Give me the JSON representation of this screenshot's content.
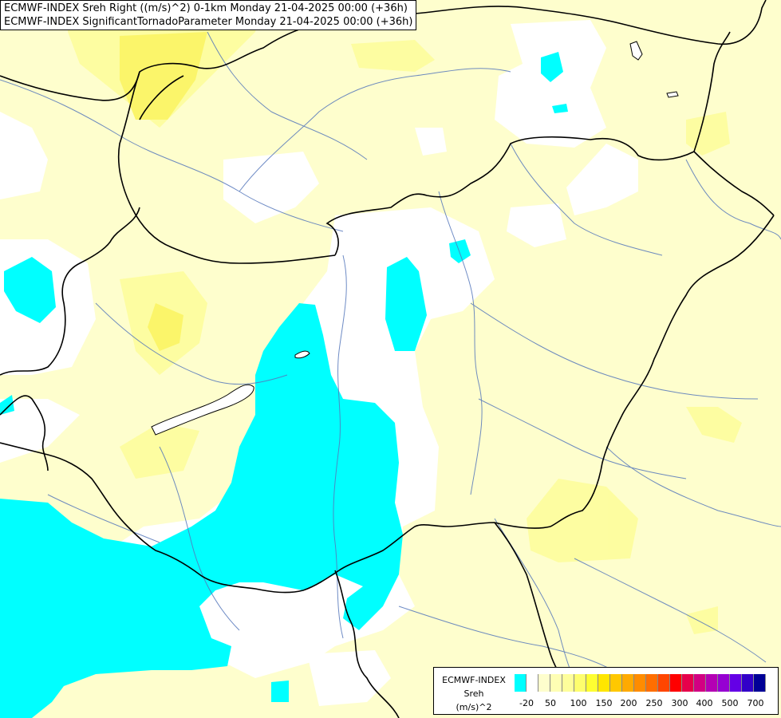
{
  "titles": {
    "line1": "ECMWF-INDEX Sreh Right ((m/s)^2) 0-1km Monday 21-04-2025 00:00 (+36h)",
    "line2": "ECMWF-INDEX SignificantTornadoParameter Monday 21-04-2025 00:00 (+36h)"
  },
  "legend": {
    "source": "ECMWF-INDEX",
    "variable": "Sreh",
    "unit": "(m/s)^2",
    "colors": [
      "#00ffff",
      "#ffffff",
      "#fefecd",
      "#fefeb4",
      "#fefe9b",
      "#fefe6e",
      "#fefe32",
      "#ffe600",
      "#ffc800",
      "#ffaa00",
      "#ff8c00",
      "#ff6e00",
      "#ff4600",
      "#ff0000",
      "#e6004b",
      "#d20082",
      "#b400b4",
      "#9600d2",
      "#6400e6",
      "#3200c8",
      "#000096"
    ],
    "tick_labels": [
      "-20",
      "50",
      "100",
      "150",
      "200",
      "250",
      "300",
      "400",
      "500",
      "700"
    ]
  },
  "colors": {
    "background": "#fefecd",
    "cyan": "#00ffff",
    "white": "#ffffff",
    "yellow_light": "#fefe9b",
    "yellow_mid": "#fefe6e",
    "rivers": "#4a6fb5",
    "borders": "#000000"
  }
}
